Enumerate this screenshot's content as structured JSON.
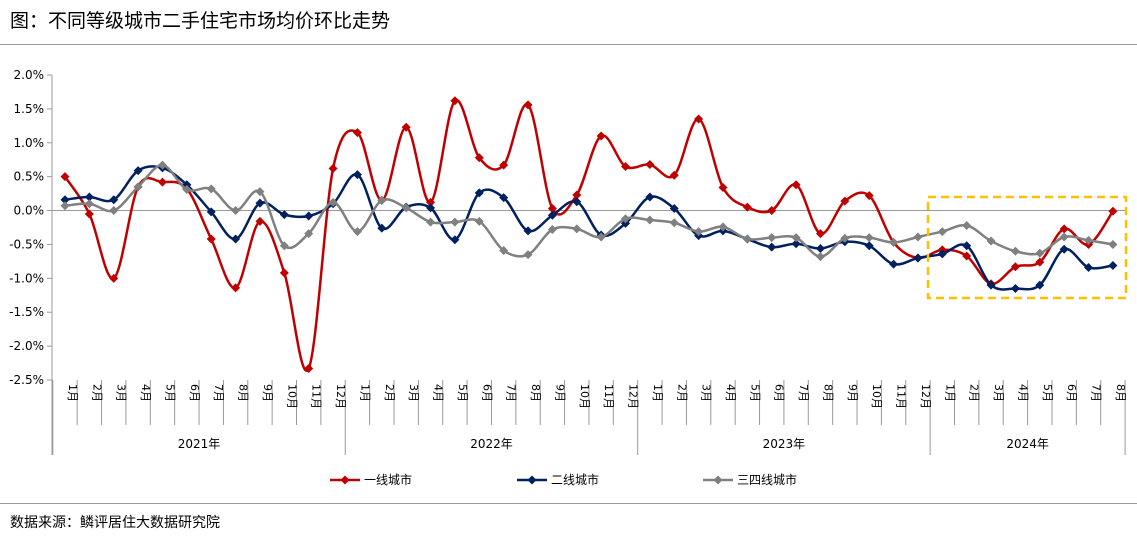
{
  "title": "图：不同等级城市二手住宅市场均价环比走势",
  "source": "数据来源：鳞评居住大数据研究院",
  "chart_data": {
    "type": "line",
    "smooth": true,
    "ylim": [
      -2.5,
      2.0
    ],
    "yticks": [
      "2.0%",
      "1.5%",
      "1.0%",
      "0.5%",
      "0.0%",
      "-0.5%",
      "-1.0%",
      "-1.5%",
      "-2.0%",
      "-2.5%"
    ],
    "ytick_values": [
      2.0,
      1.5,
      1.0,
      0.5,
      0.0,
      -0.5,
      -1.0,
      -1.5,
      -2.0,
      -2.5
    ],
    "years": [
      "2021年",
      "2022年",
      "2023年",
      "2024年"
    ],
    "year_month_counts": [
      12,
      12,
      12,
      8
    ],
    "categories": [
      "1月",
      "2月",
      "3月",
      "4月",
      "5月",
      "6月",
      "7月",
      "8月",
      "9月",
      "10月",
      "11月",
      "12月",
      "1月",
      "2月",
      "3月",
      "4月",
      "5月",
      "6月",
      "7月",
      "8月",
      "9月",
      "10月",
      "11月",
      "12月",
      "1月",
      "2月",
      "3月",
      "4月",
      "5月",
      "6月",
      "7月",
      "8月",
      "9月",
      "10月",
      "11月",
      "12月",
      "1月",
      "2月",
      "3月",
      "4月",
      "5月",
      "6月",
      "7月",
      "8月"
    ],
    "legend_position": "bottom",
    "grid": false,
    "series": [
      {
        "name": "一线城市",
        "color": "#C00000",
        "values": [
          0.5,
          -0.05,
          -1.0,
          0.35,
          0.42,
          0.32,
          -0.42,
          -1.14,
          -0.16,
          -0.92,
          -2.33,
          0.62,
          1.15,
          0.15,
          1.23,
          0.12,
          1.62,
          0.78,
          0.67,
          1.56,
          0.03,
          0.23,
          1.1,
          0.65,
          0.68,
          0.52,
          1.35,
          0.34,
          0.05,
          0.0,
          0.38,
          -0.34,
          0.14,
          0.22,
          -0.47,
          -0.7,
          -0.58,
          -0.67,
          -1.08,
          -0.83,
          -0.76,
          -0.27,
          -0.5,
          -0.01
        ]
      },
      {
        "name": "二线城市",
        "color": "#002060",
        "values": [
          0.16,
          0.2,
          0.16,
          0.59,
          0.63,
          0.38,
          -0.02,
          -0.42,
          0.11,
          -0.06,
          -0.08,
          0.1,
          0.53,
          -0.26,
          0.05,
          0.04,
          -0.43,
          0.26,
          0.19,
          -0.3,
          -0.07,
          0.13,
          -0.36,
          -0.19,
          0.2,
          0.03,
          -0.37,
          -0.3,
          -0.42,
          -0.54,
          -0.49,
          -0.56,
          -0.46,
          -0.52,
          -0.79,
          -0.7,
          -0.64,
          -0.52,
          -1.1,
          -1.15,
          -1.1,
          -0.57,
          -0.84,
          -0.81
        ]
      },
      {
        "name": "三四线城市",
        "color": "#808080",
        "values": [
          0.07,
          0.1,
          0.0,
          0.35,
          0.67,
          0.31,
          0.32,
          0.0,
          0.28,
          -0.52,
          -0.34,
          0.12,
          -0.31,
          0.15,
          0.04,
          -0.17,
          -0.17,
          -0.16,
          -0.59,
          -0.65,
          -0.28,
          -0.27,
          -0.39,
          -0.12,
          -0.14,
          -0.18,
          -0.31,
          -0.24,
          -0.42,
          -0.4,
          -0.4,
          -0.68,
          -0.41,
          -0.4,
          -0.47,
          -0.39,
          -0.31,
          -0.22,
          -0.45,
          -0.6,
          -0.63,
          -0.39,
          -0.44,
          -0.5
        ]
      }
    ],
    "annotations": [
      {
        "type": "dashed-box",
        "color": "#FFC000",
        "range": [
          "2024-01",
          "2024-08"
        ]
      }
    ]
  }
}
